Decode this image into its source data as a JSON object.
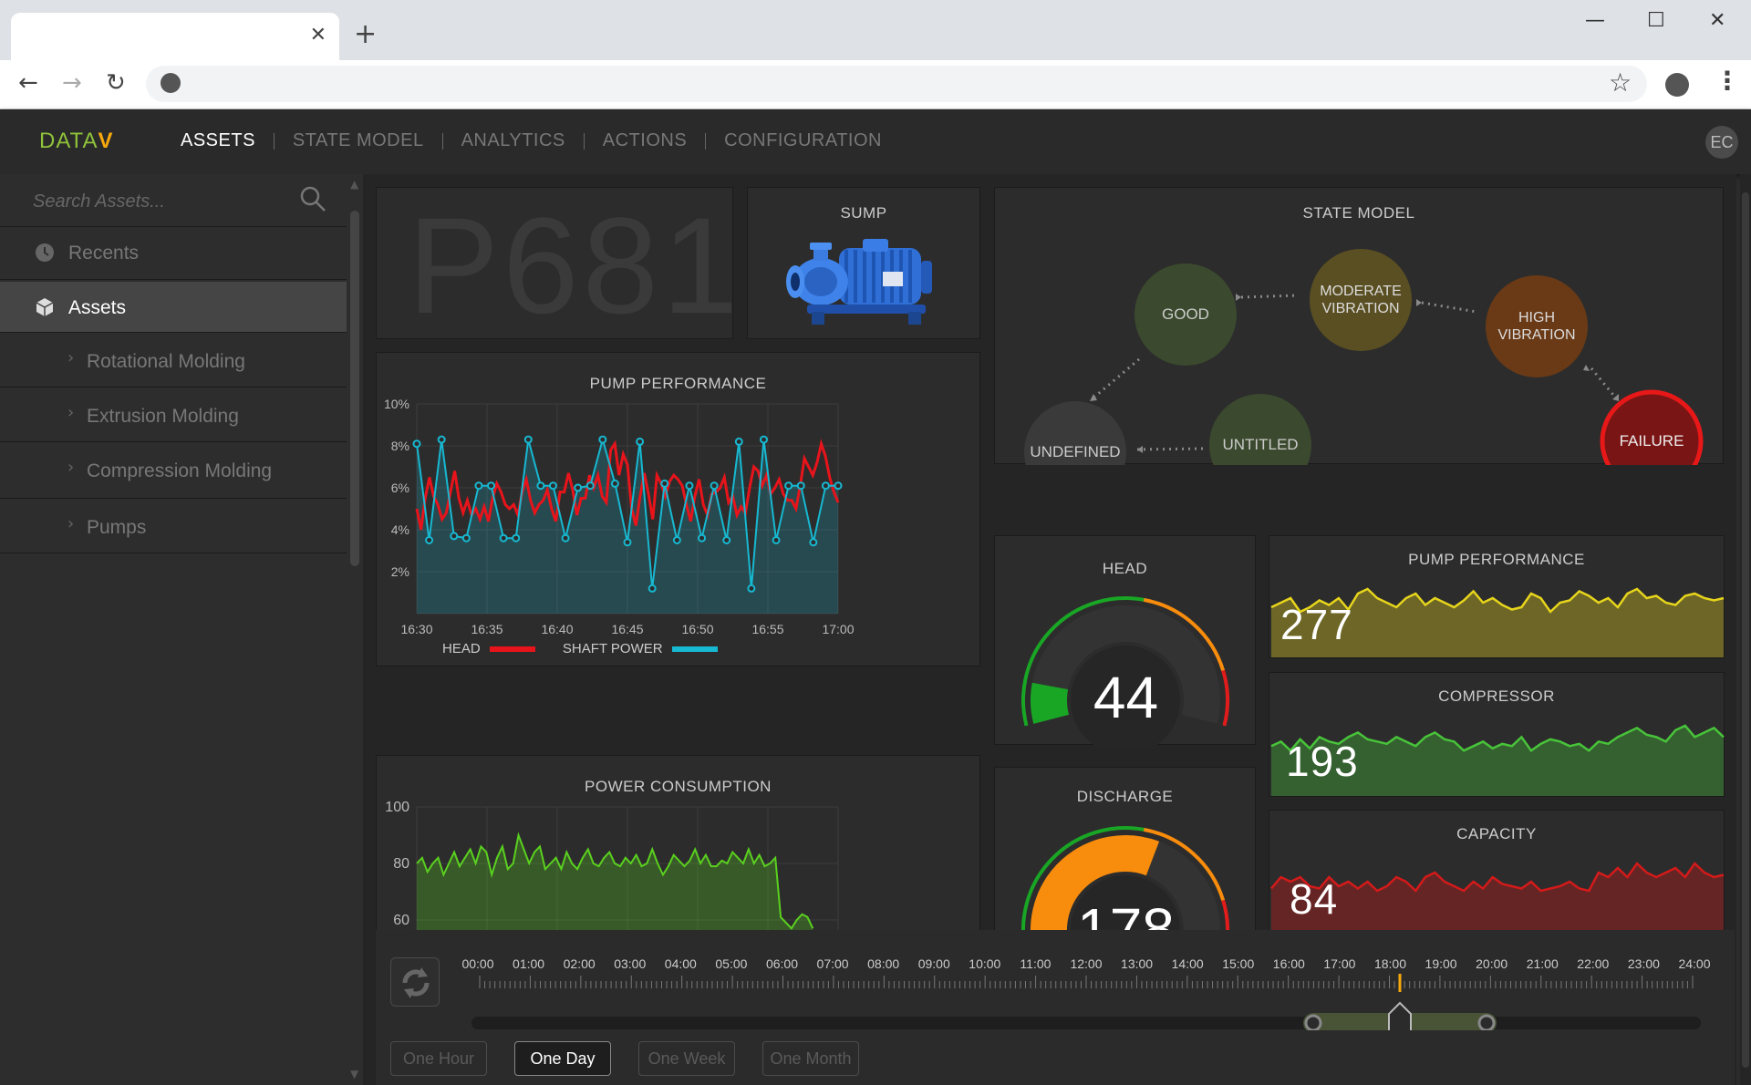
{
  "browser": {
    "tab_close": "✕",
    "new_tab": "+",
    "minimize": "—",
    "maximize": "☐",
    "close": "✕",
    "back": "←",
    "forward": "→",
    "reload": "↻",
    "star": "☆",
    "menu": "⋮"
  },
  "header": {
    "logo_main": "DATA",
    "logo_accent": "V",
    "nav": [
      "ASSETS",
      "STATE MODEL",
      "ANALYTICS",
      "ACTIONS",
      "CONFIGURATION"
    ],
    "avatar_initials": "EC"
  },
  "sidebar": {
    "search_placeholder": "Search Assets...",
    "items": [
      {
        "label": "Recents",
        "icon": "clock-icon"
      },
      {
        "label": "Assets",
        "icon": "cube-icon"
      }
    ],
    "sub_items": [
      "Rotational Molding",
      "Extrusion Molding",
      "Compression Molding",
      "Pumps"
    ]
  },
  "asset": {
    "id": "P681",
    "sump_title": "SUMP"
  },
  "state_model": {
    "title": "STATE MODEL",
    "states": [
      {
        "label": "GOOD",
        "color": "#3b4a2e"
      },
      {
        "label": "MODERATE VIBRATION",
        "color": "#5a4f22"
      },
      {
        "label": "HIGH VIBRATION",
        "color": "#6a3a16"
      },
      {
        "label": "UNTITLED",
        "color": "#3b4a2e"
      },
      {
        "label": "UNDEFINED",
        "color": "#3a3a3a"
      },
      {
        "label": "FAILURE",
        "color": "#7a1515"
      }
    ]
  },
  "pump_chart": {
    "title": "PUMP PERFORMANCE",
    "legend": [
      "HEAD",
      "SHAFT POWER"
    ]
  },
  "power_chart": {
    "title": "POWER CONSUMPTION"
  },
  "gauges": {
    "head": {
      "title": "HEAD",
      "value": "44"
    },
    "discharge": {
      "title": "DISCHARGE",
      "value": "178"
    }
  },
  "stats": [
    {
      "title": "PUMP PERFORMANCE",
      "value": "277",
      "color": "#e7d51c"
    },
    {
      "title": "COMPRESSOR",
      "value": "193",
      "color": "#48c43a"
    },
    {
      "title": "CAPACITY",
      "value": "84",
      "color": "#d41a1a"
    }
  ],
  "timeline": {
    "hours": [
      "00:00",
      "01:00",
      "02:00",
      "03:00",
      "04:00",
      "05:00",
      "06:00",
      "07:00",
      "08:00",
      "09:00",
      "10:00",
      "11:00",
      "12:00",
      "13:00",
      "14:00",
      "15:00",
      "16:00",
      "17:00",
      "18:00",
      "19:00",
      "20:00",
      "21:00",
      "22:00",
      "23:00",
      "24:00"
    ],
    "ranges": [
      "One Hour",
      "One Day",
      "One Week",
      "One Month"
    ],
    "active_range": "One Day"
  },
  "chart_data": [
    {
      "type": "line",
      "title": "PUMP PERFORMANCE",
      "x_ticks": [
        "16:30",
        "16:35",
        "16:40",
        "16:45",
        "16:50",
        "16:55",
        "17:00"
      ],
      "y_ticks": [
        "2%",
        "4%",
        "6%",
        "8%",
        "10%"
      ],
      "ylim": [
        0,
        10
      ],
      "series": [
        {
          "name": "HEAD",
          "color": "#e8141b",
          "values": [
            5,
            4,
            5.5,
            6.5,
            5.6,
            5.2,
            4.5,
            4.8,
            5.8,
            6.8,
            5.5,
            4.8,
            5.4,
            4.7,
            5,
            4.5,
            5.1,
            4.4,
            5.5,
            6.2,
            5.8,
            5.2,
            5,
            5.2,
            4.7,
            5.8,
            6.4,
            5.4,
            4.8,
            5.2,
            5.4,
            5.9,
            5,
            4.4,
            5.8,
            5.8,
            6.7,
            5.9,
            4.7,
            5.5,
            5.5,
            6.6,
            6,
            6.6,
            5.6,
            5.3,
            7.8,
            8.1,
            6.6,
            7.6,
            7.1,
            5,
            4.2,
            5.6,
            6.7,
            5.7,
            4.5,
            6.6,
            6.2,
            5.6,
            6.3,
            6.6,
            6.4,
            6.1,
            5.2,
            4.4,
            5.6,
            6.4,
            5.2,
            4.7,
            5.7,
            5.8,
            6,
            6.5,
            5.3,
            5.6,
            4.7,
            5.1,
            4.8,
            6,
            7,
            6.8,
            6.1,
            6.6,
            5.7,
            6,
            6.4,
            5.7,
            5.4,
            5.4,
            5,
            6.1,
            7.4,
            7,
            6.6,
            7.2,
            8.1,
            7.5,
            6.5,
            5.8,
            5.3
          ]
        },
        {
          "name": "SHAFT POWER",
          "color": "#17b8d1",
          "values": [
            8.1,
            3.5,
            8.3,
            3.7,
            3.6,
            6.1,
            6.1,
            3.6,
            3.6,
            8.3,
            6.1,
            6.1,
            3.6,
            6,
            6.1,
            8.3,
            6.2,
            3.4,
            8.2,
            1.2,
            6.2,
            3.5,
            6.1,
            3.6,
            6.1,
            3.5,
            8.2,
            1.2,
            8.3,
            3.5,
            6.1,
            6.1,
            3.4,
            6.1,
            6.1
          ]
        }
      ]
    },
    {
      "type": "area",
      "title": "POWER CONSUMPTION",
      "y_ticks": [
        "60",
        "80",
        "100"
      ],
      "ylim": [
        55,
        105
      ],
      "series": [
        {
          "name": "",
          "color": "#5ad11f",
          "values": [
            80,
            82,
            77,
            80,
            82,
            76,
            80,
            84,
            79,
            82,
            85,
            80,
            86,
            84,
            76,
            82,
            86,
            78,
            80,
            90,
            85,
            80,
            84,
            86,
            78,
            80,
            82,
            78,
            84,
            80,
            78,
            82,
            85,
            80,
            79,
            82,
            84,
            80,
            79,
            82,
            80,
            83,
            79,
            80,
            85,
            80,
            76,
            79,
            83,
            81,
            79,
            81,
            85,
            80,
            83,
            79,
            79,
            81,
            80,
            84,
            82,
            80,
            85,
            80,
            83,
            79,
            80,
            82,
            61,
            59,
            57,
            60,
            62,
            61,
            57
          ]
        }
      ]
    },
    {
      "type": "gauge",
      "title": "HEAD",
      "value": 44,
      "fill_fraction": 0.12
    },
    {
      "type": "gauge",
      "title": "DISCHARGE",
      "value": 178,
      "fill_fraction": 0.6
    },
    {
      "type": "area",
      "title": "PUMP PERFORMANCE",
      "series": [
        {
          "name": "",
          "color": "#e7d51c",
          "values": [
            40,
            42,
            44,
            38,
            40,
            43,
            41,
            44,
            39,
            46,
            48,
            44,
            42,
            40,
            44,
            46,
            41,
            44,
            42,
            40,
            43,
            47,
            42,
            44,
            41,
            39,
            40,
            46,
            44,
            38,
            42,
            43,
            47,
            45,
            42,
            44,
            40,
            46,
            48,
            44,
            45,
            42,
            41,
            45,
            46,
            44,
            43,
            44
          ]
        }
      ]
    },
    {
      "type": "area",
      "title": "COMPRESSOR",
      "series": [
        {
          "name": "",
          "color": "#48c43a",
          "values": [
            54,
            56,
            52,
            57,
            53,
            58,
            56,
            55,
            58,
            60,
            57,
            56,
            55,
            58,
            56,
            54,
            58,
            60,
            57,
            56,
            52,
            54,
            56,
            53,
            55,
            54,
            58,
            52,
            55,
            57,
            56,
            54,
            55,
            52,
            56,
            55,
            58,
            60,
            62,
            59,
            58,
            56,
            61,
            63,
            58,
            60,
            62,
            58
          ]
        }
      ]
    },
    {
      "type": "area",
      "title": "CAPACITY",
      "series": [
        {
          "name": "",
          "color": "#d41a1a",
          "values": [
            55,
            60,
            58,
            60,
            56,
            55,
            60,
            56,
            58,
            55,
            58,
            54,
            56,
            60,
            58,
            54,
            60,
            62,
            58,
            56,
            54,
            58,
            55,
            60,
            57,
            56,
            55,
            58,
            54,
            55,
            56,
            58,
            55,
            54,
            62,
            60,
            64,
            60,
            66,
            62,
            60,
            62,
            64,
            60,
            66,
            62,
            60,
            61
          ]
        }
      ]
    }
  ]
}
